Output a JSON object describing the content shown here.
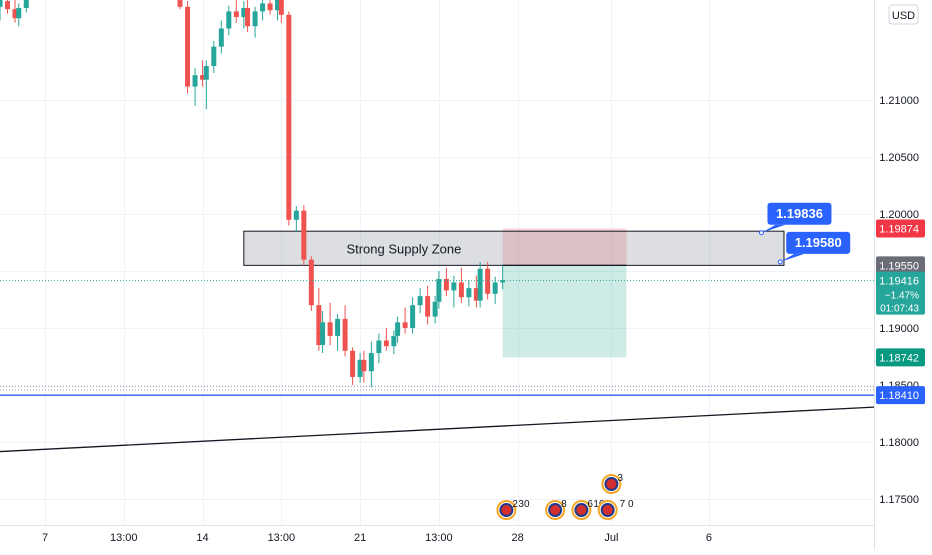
{
  "currency_button": "USD",
  "chart_data": {
    "type": "candlestick",
    "instrument_currency": "USD",
    "y_ticks": [
      {
        "value": 1.175,
        "label": "1.17500"
      },
      {
        "value": 1.18,
        "label": "1.18000"
      },
      {
        "value": 1.185,
        "label": "1.18500"
      },
      {
        "value": 1.19,
        "label": "1.19000"
      },
      {
        "value": 1.195,
        "label": "1.19500"
      },
      {
        "value": 1.2,
        "label": "1.20000"
      },
      {
        "value": 1.205,
        "label": "1.20500"
      },
      {
        "value": 1.21,
        "label": "1.21000"
      }
    ],
    "ylim": [
      1.1727,
      1.2188
    ],
    "x_ticks": [
      {
        "t": 12,
        "label": "7"
      },
      {
        "t": 33,
        "label": "13:00"
      },
      {
        "t": 54,
        "label": "14"
      },
      {
        "t": 75,
        "label": "13:00"
      },
      {
        "t": 96,
        "label": "21"
      },
      {
        "t": 117,
        "label": "13:00"
      },
      {
        "t": 138,
        "label": "28"
      },
      {
        "t": 163,
        "label": "Jul"
      },
      {
        "t": 189,
        "label": "6"
      }
    ],
    "xlim": [
      0,
      233
    ],
    "candles": [
      [
        0,
        1.2182,
        1.2192,
        1.217,
        1.2188
      ],
      [
        2,
        1.2187,
        1.2195,
        1.2176,
        1.218
      ],
      [
        4,
        1.218,
        1.2188,
        1.2168,
        1.2172
      ],
      [
        5,
        1.2172,
        1.2185,
        1.2165,
        1.2181
      ],
      [
        7,
        1.2181,
        1.2193,
        1.2177,
        1.2189
      ],
      [
        48,
        1.2188,
        1.2196,
        1.218,
        1.2182
      ],
      [
        50,
        1.2182,
        1.2187,
        1.2106,
        1.2112
      ],
      [
        52,
        1.2112,
        1.2128,
        1.2095,
        1.2122
      ],
      [
        54,
        1.2122,
        1.2135,
        1.2112,
        1.2118
      ],
      [
        55,
        1.2118,
        1.2135,
        1.2092,
        1.213
      ],
      [
        57,
        1.213,
        1.2152,
        1.2124,
        1.2147
      ],
      [
        59,
        1.2147,
        1.217,
        1.2141,
        1.2163
      ],
      [
        61,
        1.2163,
        1.2183,
        1.2157,
        1.2178
      ],
      [
        63,
        1.2178,
        1.219,
        1.2168,
        1.2173
      ],
      [
        65,
        1.2173,
        1.2187,
        1.2163,
        1.2181
      ],
      [
        66,
        1.2181,
        1.2194,
        1.216,
        1.2165
      ],
      [
        68,
        1.2165,
        1.2182,
        1.2155,
        1.2178
      ],
      [
        70,
        1.2178,
        1.2192,
        1.217,
        1.2185
      ],
      [
        72,
        1.2185,
        1.2198,
        1.2175,
        1.2179
      ],
      [
        74,
        1.2179,
        1.2194,
        1.217,
        1.2188
      ],
      [
        75,
        1.2188,
        1.2196,
        1.2168,
        1.2175
      ],
      [
        77,
        1.2175,
        1.2178,
        1.199,
        1.1995
      ],
      [
        79,
        1.1995,
        1.2007,
        1.1985,
        1.2003
      ],
      [
        81,
        1.2003,
        1.2008,
        1.1955,
        1.196
      ],
      [
        83,
        1.196,
        1.1963,
        1.1915,
        1.192
      ],
      [
        85,
        1.192,
        1.1935,
        1.188,
        1.1885
      ],
      [
        86,
        1.1885,
        1.1915,
        1.1878,
        1.1905
      ],
      [
        88,
        1.1905,
        1.1922,
        1.1885,
        1.1893
      ],
      [
        90,
        1.1893,
        1.1912,
        1.188,
        1.1908
      ],
      [
        92,
        1.1908,
        1.192,
        1.1875,
        1.188
      ],
      [
        94,
        1.188,
        1.1883,
        1.185,
        1.1857
      ],
      [
        96,
        1.1857,
        1.1878,
        1.1852,
        1.1872
      ],
      [
        97,
        1.1872,
        1.188,
        1.1852,
        1.1862
      ],
      [
        99,
        1.1862,
        1.1888,
        1.1848,
        1.1878
      ],
      [
        101,
        1.1878,
        1.1895,
        1.1869,
        1.1889
      ],
      [
        103,
        1.1889,
        1.19,
        1.188,
        1.1884
      ],
      [
        105,
        1.1884,
        1.1898,
        1.1877,
        1.1893
      ],
      [
        106,
        1.1893,
        1.191,
        1.1887,
        1.1905
      ],
      [
        108,
        1.1905,
        1.1918,
        1.1895,
        1.19
      ],
      [
        110,
        1.19,
        1.1927,
        1.1895,
        1.192
      ],
      [
        112,
        1.192,
        1.1935,
        1.1913,
        1.1928
      ],
      [
        114,
        1.1928,
        1.1937,
        1.1903,
        1.191
      ],
      [
        116,
        1.191,
        1.1928,
        1.1904,
        1.1923
      ],
      [
        117,
        1.1923,
        1.195,
        1.1917,
        1.1943
      ],
      [
        119,
        1.1943,
        1.1953,
        1.1928,
        1.1933
      ],
      [
        121,
        1.1933,
        1.1946,
        1.1918,
        1.194
      ],
      [
        123,
        1.194,
        1.1953,
        1.1922,
        1.1927
      ],
      [
        125,
        1.1927,
        1.1942,
        1.1919,
        1.1935
      ],
      [
        127,
        1.1935,
        1.1946,
        1.1918,
        1.1924
      ],
      [
        128,
        1.1924,
        1.1958,
        1.1918,
        1.1952
      ],
      [
        130,
        1.1952,
        1.1958,
        1.1925,
        1.193
      ],
      [
        132,
        1.193,
        1.1945,
        1.1921,
        1.194
      ],
      [
        134,
        1.194,
        1.1955,
        1.1934,
        1.1942
      ]
    ],
    "bull_color": "#26a69a",
    "bear_color": "#ef5350",
    "zone": {
      "label": "Strong Supply Zone",
      "t_start": 65,
      "t_end": 209,
      "upper": 1.1985,
      "lower": 1.1955
    },
    "position": {
      "t_start": 134,
      "t_end": 167,
      "stop": 1.19874,
      "entry": 1.1955,
      "target": 1.18742
    },
    "callouts": [
      {
        "label": "1.19836",
        "value": 1.19836,
        "t": 203
      },
      {
        "label": "1.19580",
        "value": 1.1958,
        "t": 208
      }
    ],
    "horizontal_line": {
      "value": 1.1841,
      "label": "1.18410",
      "color": "#2962ff"
    },
    "dotted_levels": [
      1.18485,
      1.18455
    ],
    "trendline": {
      "t0": 0,
      "y0": 1.17915,
      "t1": 233,
      "y1": 1.18305
    },
    "price_labels": [
      {
        "value": 1.19874,
        "label": "1.19874",
        "bg": "#f23645",
        "fg": "#ffffff"
      },
      {
        "value": 1.1955,
        "label": "1.19550",
        "bg": "#6a6d78",
        "fg": "#ffffff"
      },
      {
        "value": 1.18742,
        "label": "1.18742",
        "bg": "#089981",
        "fg": "#ffffff"
      },
      {
        "value": 1.1841,
        "label": "1.18410",
        "bg": "#2962ff",
        "fg": "#ffffff"
      }
    ],
    "last_price": {
      "value": 1.19416,
      "label": "1.19416",
      "change": "−1.47%",
      "countdown": "01:07:43",
      "bg": "#26a69a"
    },
    "events": [
      {
        "t": 135,
        "row": 0,
        "count": "2",
        "count2": "30"
      },
      {
        "t": 148,
        "row": 0,
        "count": "8",
        "count2": ""
      },
      {
        "t": 155,
        "row": 0,
        "count": "6",
        "count2": "10"
      },
      {
        "t": 162,
        "row": 0,
        "count": "",
        "count2": "7 0"
      },
      {
        "t": 163,
        "row": 1,
        "count": "3",
        "count2": ""
      }
    ]
  }
}
